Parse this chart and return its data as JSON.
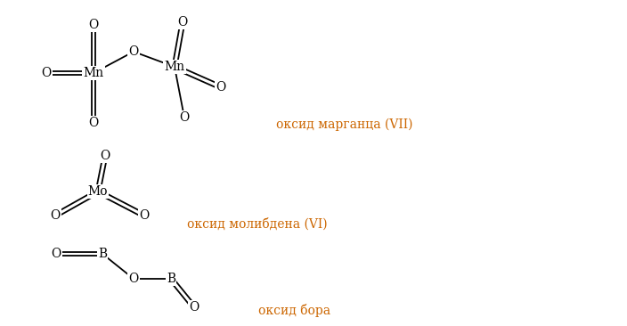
{
  "background": "#ffffff",
  "text_color": "#000000",
  "label_color": "#cc6600",
  "label1": "оксид марганца (VII)",
  "label2": "оксид молибдена (VI)",
  "label3": "оксид бора",
  "font_size_label": 10,
  "font_size_atom": 10
}
